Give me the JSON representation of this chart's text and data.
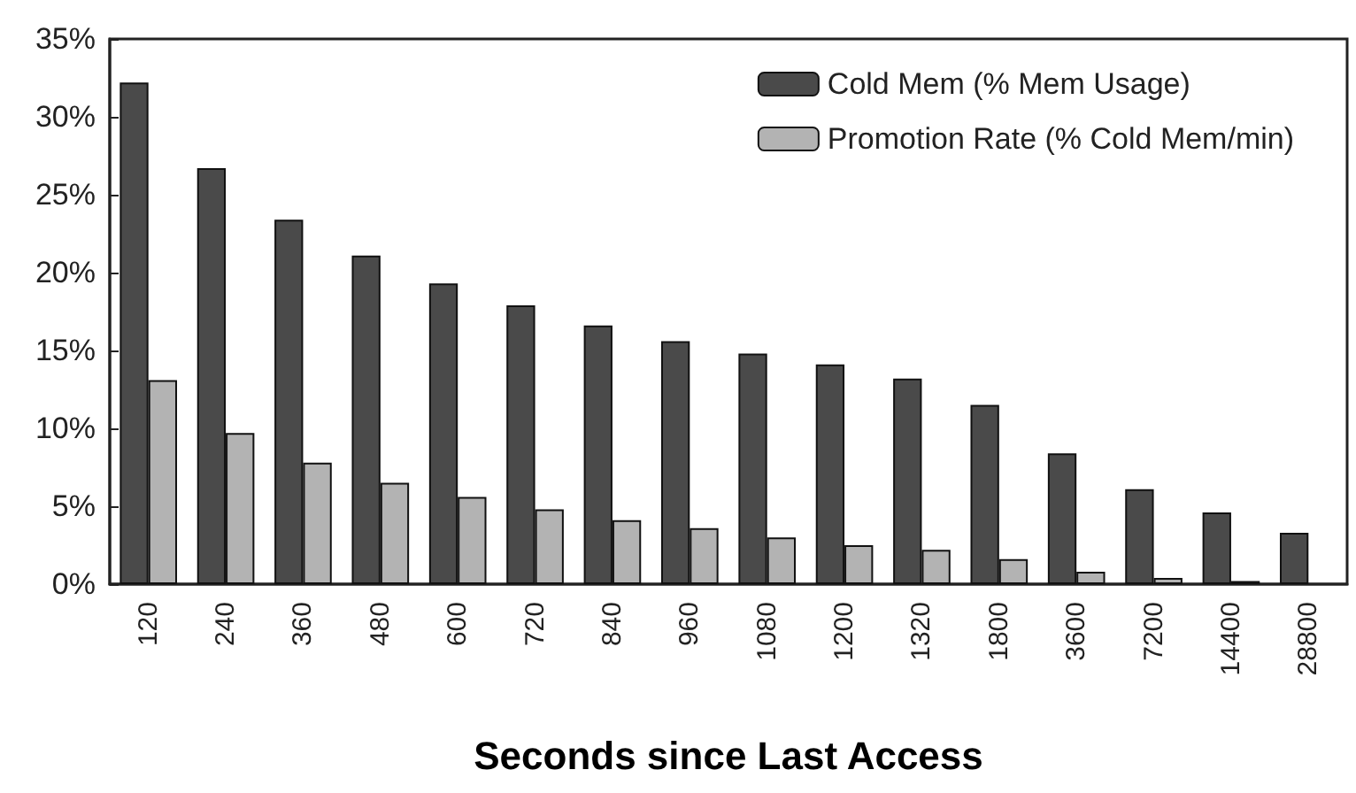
{
  "chart_data": {
    "type": "bar",
    "xlabel": "Seconds since Last Access",
    "categories": [
      "120",
      "240",
      "360",
      "480",
      "600",
      "720",
      "840",
      "960",
      "1080",
      "1200",
      "1320",
      "1800",
      "3600",
      "7200",
      "14400",
      "28800"
    ],
    "series": [
      {
        "name": "Cold Mem (% Mem Usage)",
        "color": "#4a4a4a",
        "values": [
          32.2,
          26.7,
          23.4,
          21.1,
          19.3,
          17.9,
          16.6,
          15.6,
          14.8,
          14.1,
          13.2,
          11.5,
          8.4,
          6.1,
          4.6,
          3.3
        ]
      },
      {
        "name": "Promotion Rate (% Cold Mem/min)",
        "color": "#b3b3b3",
        "values": [
          13.1,
          9.7,
          7.8,
          6.5,
          5.6,
          4.8,
          4.1,
          3.6,
          3.0,
          2.5,
          2.2,
          1.6,
          0.8,
          0.4,
          0.2,
          null
        ]
      }
    ],
    "ylim": [
      0,
      35
    ],
    "yticks": [
      {
        "value": 0,
        "label": "0%"
      },
      {
        "value": 5,
        "label": "5%"
      },
      {
        "value": 10,
        "label": "10%"
      },
      {
        "value": 15,
        "label": "15%"
      },
      {
        "value": 20,
        "label": "20%"
      },
      {
        "value": 25,
        "label": "25%"
      },
      {
        "value": 30,
        "label": "30%"
      },
      {
        "value": 35,
        "label": "35%"
      }
    ],
    "grid": false,
    "legend": "top right"
  }
}
